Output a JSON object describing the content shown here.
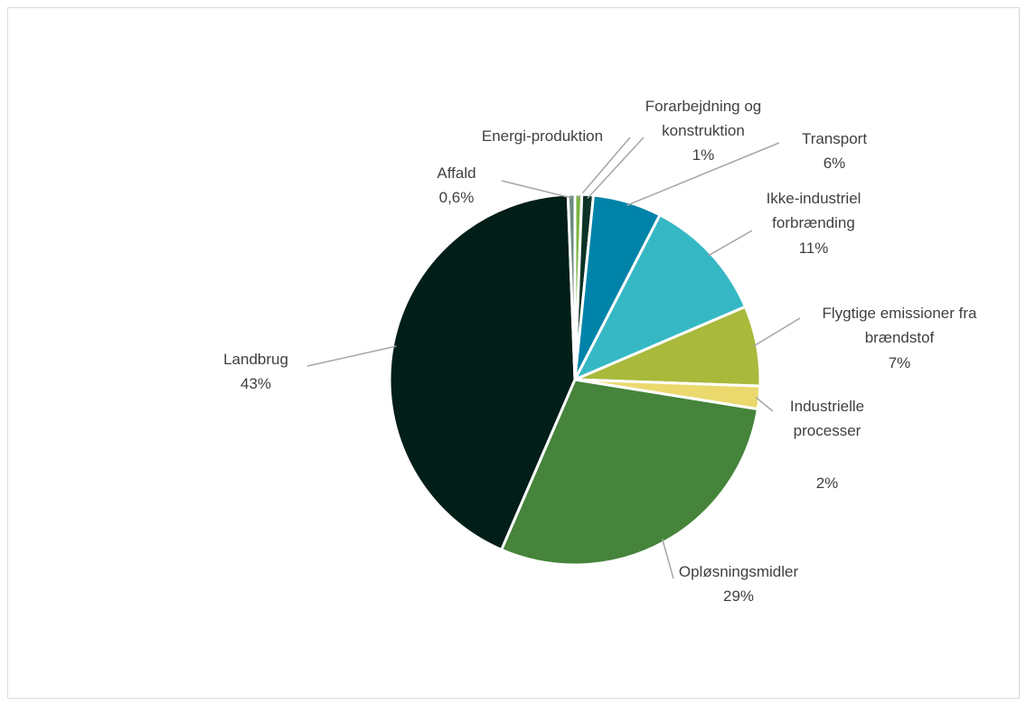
{
  "chart_data": {
    "type": "pie",
    "categories": [
      "Energi-produktion",
      "Forarbejdning og konstruktion",
      "Transport",
      "Ikke-industriel forbrænding",
      "Flygtige emissioner fra brændstof",
      "Industrielle processer",
      "Opløsningsmidler",
      "Landbrug",
      "Affald"
    ],
    "values": [
      0.6,
      1,
      6,
      11,
      7,
      2,
      29,
      43,
      0.6
    ],
    "value_labels": [
      null,
      "1%",
      "6%",
      "11%",
      "7%",
      "2%",
      "29%",
      "43%",
      "0,6%"
    ],
    "colors": [
      "#7cb342",
      "#0d3326",
      "#0083a9",
      "#36b8c4",
      "#a9b93b",
      "#ebd96e",
      "#45843a",
      "#021e18",
      "#6c8a80"
    ]
  }
}
